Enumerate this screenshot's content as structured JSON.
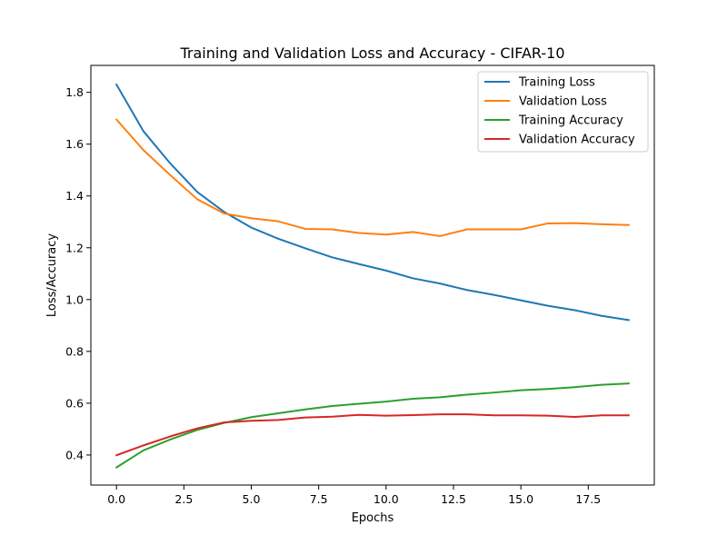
{
  "chart_data": {
    "type": "line",
    "title": "Training and Validation Loss and Accuracy - CIFAR-10",
    "xlabel": "Epochs",
    "ylabel": "Loss/Accuracy",
    "xlim": [
      -0.95,
      19.95
    ],
    "ylim": [
      0.284,
      1.904
    ],
    "xticks": [
      0.0,
      2.5,
      5.0,
      7.5,
      10.0,
      12.5,
      15.0,
      17.5
    ],
    "xtick_labels": [
      "0.0",
      "2.5",
      "5.0",
      "7.5",
      "10.0",
      "12.5",
      "15.0",
      "17.5"
    ],
    "yticks": [
      0.4,
      0.6,
      0.8,
      1.0,
      1.2,
      1.4,
      1.6,
      1.8
    ],
    "ytick_labels": [
      "0.4",
      "0.6",
      "0.8",
      "1.0",
      "1.2",
      "1.4",
      "1.6",
      "1.8"
    ],
    "grid": false,
    "legend_position": "top-right",
    "x": [
      0,
      1,
      2,
      3,
      4,
      5,
      6,
      7,
      8,
      9,
      10,
      11,
      12,
      13,
      14,
      15,
      16,
      17,
      18,
      19
    ],
    "series": [
      {
        "name": "Training Loss",
        "color": "#1f77b4",
        "values": [
          1.83,
          1.65,
          1.525,
          1.415,
          1.338,
          1.278,
          1.235,
          1.198,
          1.163,
          1.137,
          1.112,
          1.082,
          1.062,
          1.037,
          1.018,
          0.997,
          0.976,
          0.959,
          0.937,
          0.921
        ]
      },
      {
        "name": "Validation Loss",
        "color": "#ff7f0e",
        "values": [
          1.695,
          1.577,
          1.48,
          1.387,
          1.332,
          1.314,
          1.302,
          1.273,
          1.271,
          1.257,
          1.251,
          1.261,
          1.245,
          1.271,
          1.271,
          1.271,
          1.294,
          1.295,
          1.291,
          1.288
        ]
      },
      {
        "name": "Training Accuracy",
        "color": "#2ca02c",
        "values": [
          0.352,
          0.418,
          0.46,
          0.497,
          0.524,
          0.546,
          0.561,
          0.576,
          0.589,
          0.598,
          0.606,
          0.617,
          0.623,
          0.633,
          0.641,
          0.65,
          0.655,
          0.662,
          0.671,
          0.676
        ]
      },
      {
        "name": "Validation Accuracy",
        "color": "#d62728",
        "values": [
          0.399,
          0.437,
          0.472,
          0.503,
          0.526,
          0.532,
          0.535,
          0.545,
          0.548,
          0.555,
          0.552,
          0.554,
          0.557,
          0.557,
          0.553,
          0.553,
          0.552,
          0.547,
          0.553,
          0.553
        ]
      }
    ]
  }
}
